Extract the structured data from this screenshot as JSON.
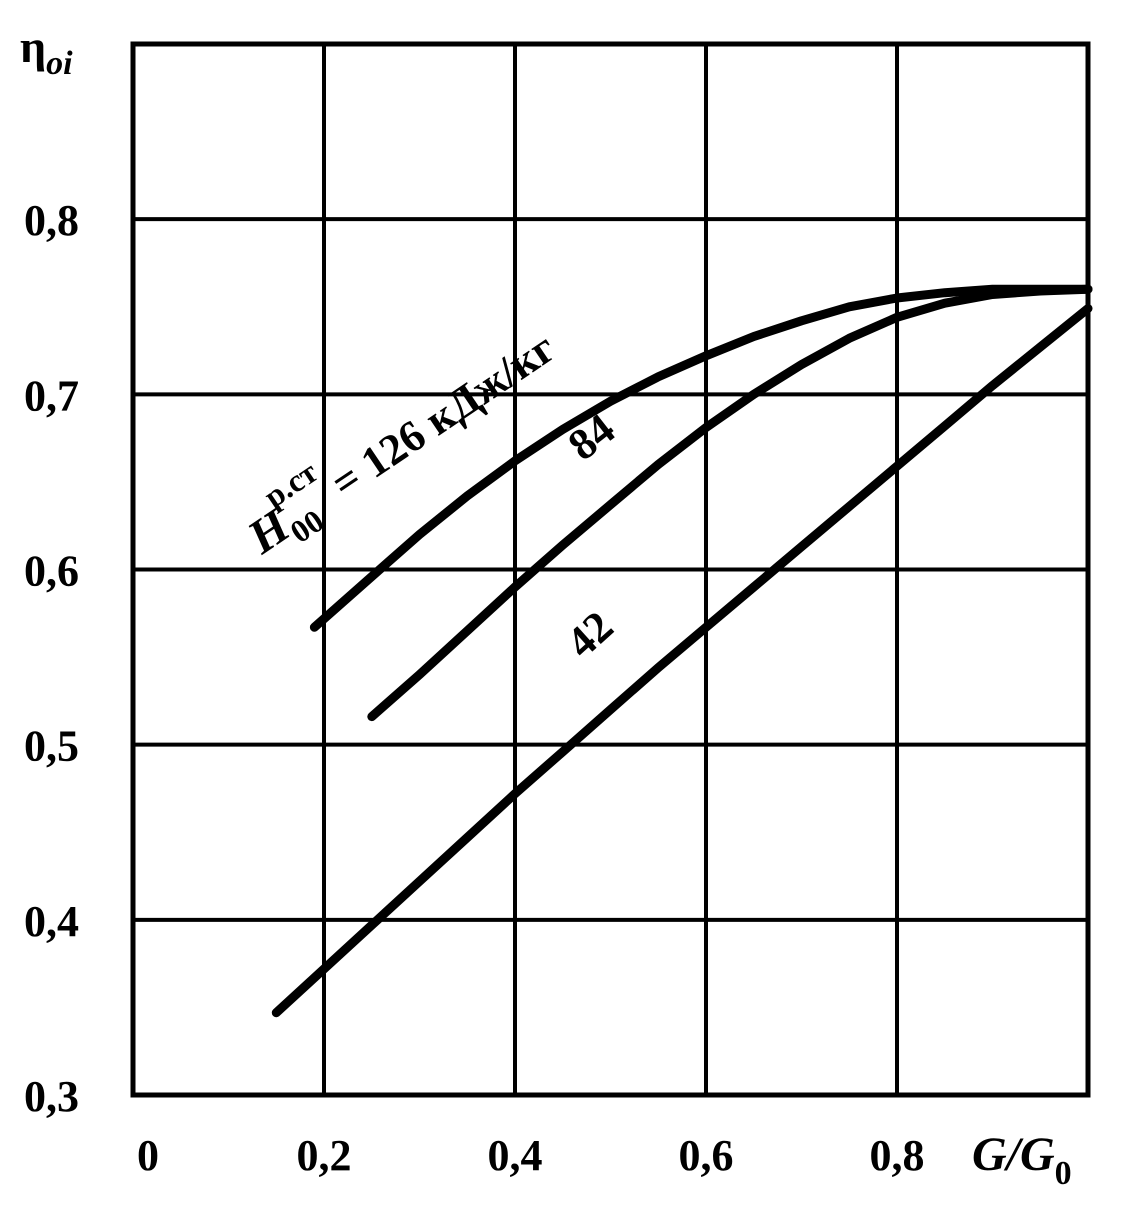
{
  "chart_data": {
    "type": "line",
    "xlabel": "G/G0",
    "ylabel": "ηoi",
    "xlim": [
      0,
      1.0
    ],
    "ylim": [
      0.3,
      0.9
    ],
    "x_ticks": [
      "0",
      "0,2",
      "0,4",
      "0,6",
      "0,8"
    ],
    "y_ticks": [
      "0,3",
      "0,4",
      "0,5",
      "0,6",
      "0,7",
      "0,8"
    ],
    "grid": true,
    "series_label_prefix": "H",
    "series_label_subscript": "00",
    "series_label_superscript": "р.ст",
    "series": [
      {
        "name": "= 126 кДж/кг",
        "x": [
          0.19,
          0.25,
          0.3,
          0.35,
          0.4,
          0.45,
          0.5,
          0.55,
          0.6,
          0.65,
          0.7,
          0.75,
          0.8,
          0.85,
          0.9,
          0.95,
          1.0
        ],
        "y": [
          0.567,
          0.596,
          0.62,
          0.642,
          0.662,
          0.68,
          0.696,
          0.71,
          0.722,
          0.733,
          0.742,
          0.75,
          0.755,
          0.758,
          0.76,
          0.76,
          0.76
        ]
      },
      {
        "name": "84",
        "x": [
          0.25,
          0.3,
          0.35,
          0.4,
          0.45,
          0.5,
          0.55,
          0.6,
          0.65,
          0.7,
          0.75,
          0.8,
          0.85,
          0.9,
          0.95,
          1.0
        ],
        "y": [
          0.516,
          0.54,
          0.565,
          0.59,
          0.614,
          0.637,
          0.66,
          0.681,
          0.7,
          0.717,
          0.732,
          0.744,
          0.752,
          0.757,
          0.759,
          0.76
        ]
      },
      {
        "name": "42",
        "x": [
          0.15,
          0.2,
          0.25,
          0.3,
          0.35,
          0.4,
          0.45,
          0.5,
          0.55,
          0.6,
          0.65,
          0.7,
          0.75,
          0.8,
          0.85,
          0.9,
          0.95,
          1.0
        ],
        "y": [
          0.347,
          0.372,
          0.397,
          0.422,
          0.447,
          0.472,
          0.496,
          0.52,
          0.544,
          0.567,
          0.59,
          0.613,
          0.636,
          0.659,
          0.682,
          0.705,
          0.727,
          0.749
        ]
      }
    ],
    "line_color": "#000000",
    "background": "#ffffff"
  }
}
